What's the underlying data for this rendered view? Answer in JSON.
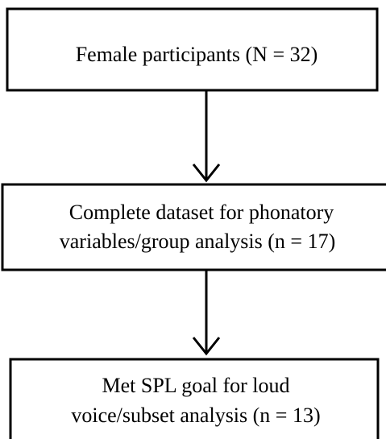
{
  "nodes": [
    {
      "lines": [
        "Female participants (N = 32)"
      ]
    },
    {
      "lines": [
        "Complete dataset for phonatory",
        "variables/group analysis (n = 17)"
      ]
    },
    {
      "lines": [
        "Met SPL goal for loud",
        "voice/subset analysis (n = 13)"
      ]
    }
  ]
}
